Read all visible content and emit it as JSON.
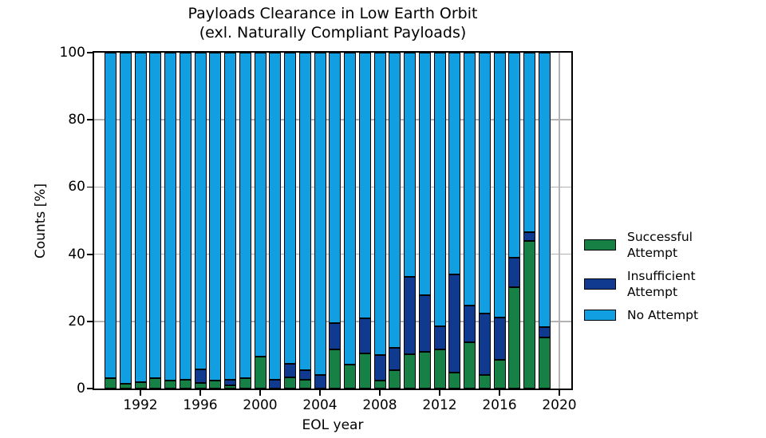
{
  "title": {
    "line1": "Payloads Clearance in Low Earth Orbit",
    "line2": "(exl. Naturally Compliant Payloads)"
  },
  "axes": {
    "xlabel": "EOL year",
    "ylabel": "Counts [%]",
    "yticks": [
      0,
      20,
      40,
      60,
      80,
      100
    ],
    "xticks": [
      1992,
      1996,
      2000,
      2004,
      2008,
      2012,
      2016,
      2020
    ],
    "ylim": [
      0,
      100
    ],
    "xlim": [
      1988.9,
      2020.8
    ],
    "grid": true
  },
  "legend": {
    "position": "right-outside",
    "items": [
      {
        "lines": [
          "Successful",
          "Attempt"
        ],
        "color": "#178045",
        "series": "successful_attempt"
      },
      {
        "lines": [
          "Insufficient",
          "Attempt"
        ],
        "color": "#0f3a8f",
        "series": "insufficient_attempt"
      },
      {
        "lines": [
          "No Attempt"
        ],
        "color": "#129fe2",
        "series": "no_attempt"
      }
    ]
  },
  "chart_data": {
    "type": "bar",
    "stacked": true,
    "bar_width_years": 0.8,
    "categories": [
      1990,
      1991,
      1992,
      1993,
      1994,
      1995,
      1996,
      1997,
      1998,
      1999,
      2000,
      2001,
      2002,
      2003,
      2004,
      2005,
      2006,
      2007,
      2008,
      2009,
      2010,
      2011,
      2012,
      2013,
      2014,
      2015,
      2016,
      2017,
      2018,
      2019
    ],
    "series": [
      {
        "name": "Successful Attempt",
        "color": "#178045",
        "values": [
          3.0,
          1.5,
          2.0,
          3.2,
          2.3,
          2.5,
          1.7,
          2.4,
          0.9,
          3.0,
          9.4,
          0,
          3.4,
          2.6,
          0,
          11.6,
          7.2,
          10.4,
          2.3,
          5.5,
          10.2,
          11.0,
          11.7,
          4.8,
          13.7,
          4.0,
          8.6,
          30.2,
          43.9,
          15.3
        ]
      },
      {
        "name": "Insufficient Attempt",
        "color": "#0f3a8f",
        "values": [
          0,
          0,
          0,
          0,
          0,
          0,
          4.0,
          0,
          1.7,
          0,
          0,
          2.6,
          4.0,
          2.8,
          4.0,
          7.9,
          0,
          10.5,
          7.7,
          6.6,
          23.1,
          16.7,
          6.8,
          29.2,
          11.1,
          18.3,
          12.5,
          8.8,
          2.6,
          3.0
        ]
      },
      {
        "name": "No Attempt",
        "color": "#129fe2",
        "values": [
          97.0,
          98.5,
          98.0,
          96.8,
          97.7,
          97.5,
          94.3,
          97.6,
          97.4,
          97.0,
          90.6,
          97.4,
          92.6,
          94.6,
          96.0,
          80.5,
          92.8,
          79.1,
          90.0,
          87.9,
          66.7,
          72.3,
          81.5,
          66.0,
          75.2,
          77.7,
          78.9,
          61.0,
          53.5,
          81.7
        ]
      }
    ],
    "title": "Payloads Clearance in Low Earth Orbit (exl. Naturally Compliant Payloads)",
    "xlabel": "EOL year",
    "ylabel": "Counts [%]"
  },
  "colors": {
    "grid": "#b3b3b3",
    "frame": "#000000",
    "background": "#ffffff"
  }
}
